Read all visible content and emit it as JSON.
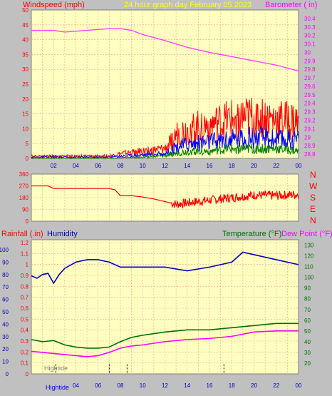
{
  "header": {
    "left_label": "Windspeed (mph)",
    "center_label": "24 hour graph day   February 05 2023",
    "right_label": "Barometer ( in)"
  },
  "lower_header": {
    "rainfall_label": "Rainfall (.in)",
    "humidity_label": "Humidity",
    "temperature_label": "Temperature (°F)",
    "dewpoint_label": "Dew Point (°F)"
  },
  "compass": [
    "N",
    "W",
    "S",
    "E",
    "N"
  ],
  "hightide_label": "Hightide",
  "colors": {
    "background": "#c0c0c0",
    "plot": "#ffffc0",
    "grid": "#f0a0a0",
    "wind": "#ff0000",
    "gust": "#0000ff",
    "avg": "#008000",
    "barometer": "#ff40ff",
    "winddir": "#ff0000",
    "humidity": "#0000c0",
    "temperature": "#007000",
    "dewpoint": "#ff00ff",
    "title": "#ffff00"
  },
  "chart_data": [
    {
      "type": "line",
      "name": "wind-barometer",
      "xlim": [
        0,
        24
      ],
      "x_ticks": [
        "02",
        "04",
        "06",
        "08",
        "10",
        "12",
        "14",
        "16",
        "18",
        "20",
        "22",
        "00"
      ],
      "y_left_ticks": [
        "0",
        "5",
        "10",
        "15",
        "20",
        "25",
        "30",
        "35",
        "40",
        "45",
        "50"
      ],
      "ylim_left": [
        0,
        50
      ],
      "y_right_ticks": [
        "28.8",
        "28.9",
        "29",
        "29.1",
        "29.2",
        "29.3",
        "29.4",
        "29.5",
        "29.6",
        "29.7",
        "29.8",
        "29.9",
        "30",
        "30.1",
        "30.2",
        "30.3",
        "30.4"
      ],
      "ylim_right": [
        28.75,
        30.5
      ],
      "barometer": {
        "x": [
          0,
          2,
          3,
          4,
          6,
          7,
          8,
          9,
          10,
          12,
          14,
          16,
          18,
          20,
          22,
          24
        ],
        "y": [
          30.26,
          30.26,
          30.24,
          30.25,
          30.27,
          30.28,
          30.28,
          30.26,
          30.21,
          30.14,
          30.06,
          30.0,
          29.95,
          29.9,
          29.85,
          29.78
        ]
      },
      "wind_envelope": {
        "x": [
          0,
          7,
          8,
          10,
          12,
          12.8,
          13,
          14,
          16,
          18,
          20,
          22,
          24
        ],
        "max": [
          1,
          1,
          2,
          3,
          4,
          8,
          10,
          12,
          14,
          16,
          17,
          16,
          15
        ],
        "gust": [
          0.5,
          0.5,
          1,
          1.5,
          2,
          4,
          5,
          6,
          7,
          8,
          9,
          8,
          8
        ],
        "avg": [
          0,
          0,
          0.3,
          0.5,
          1,
          2,
          2,
          3,
          3,
          4,
          4,
          4,
          3
        ]
      }
    },
    {
      "type": "line",
      "name": "wind-direction",
      "xlim": [
        0,
        24
      ],
      "y_ticks": [
        "0",
        "90",
        "180",
        "270",
        "360"
      ],
      "ylim": [
        0,
        360
      ],
      "x": [
        0,
        1.5,
        2,
        4,
        6,
        7,
        7.5,
        8,
        9,
        10,
        11,
        12,
        13,
        14,
        16,
        18,
        20,
        22,
        24
      ],
      "y": [
        270,
        270,
        250,
        250,
        250,
        250,
        240,
        195,
        195,
        185,
        170,
        150,
        130,
        140,
        160,
        180,
        200,
        195,
        205
      ]
    },
    {
      "type": "line",
      "name": "humidity-temperature",
      "xlim": [
        0,
        24
      ],
      "x_ticks": [
        "02",
        "04",
        "06",
        "08",
        "10",
        "12",
        "14",
        "16",
        "18",
        "20",
        "22",
        "00"
      ],
      "rain_ticks": [
        "0",
        "0.1",
        "0.2",
        "0.3",
        "0.4",
        "0.5",
        "0.6",
        "0.7",
        "0.8",
        "0.9",
        "1",
        "1.1",
        "1.2"
      ],
      "humidity_ticks": [
        "0",
        "10",
        "20",
        "30",
        "40",
        "50",
        "60",
        "70",
        "80",
        "90",
        "100"
      ],
      "temp_ticks": [
        "20",
        "30",
        "40",
        "50",
        "60",
        "70",
        "80",
        "90",
        "100",
        "110",
        "120",
        "130"
      ],
      "ylim_humidity": [
        0,
        100
      ],
      "ylim_temp": [
        10,
        135
      ],
      "humidity": {
        "x": [
          0,
          0.5,
          1,
          1.5,
          2,
          2.5,
          3,
          4,
          5,
          6,
          7,
          8,
          9,
          10,
          12,
          14,
          16,
          18,
          19,
          20,
          22,
          24
        ],
        "y": [
          79,
          77,
          80,
          81,
          73,
          80,
          85,
          90,
          92,
          92,
          90,
          86,
          86,
          86,
          86,
          83,
          86,
          90,
          98,
          96,
          92,
          88
        ]
      },
      "temperature": {
        "x": [
          0,
          1,
          2,
          3,
          4,
          5,
          6,
          7,
          8,
          9,
          10,
          12,
          14,
          16,
          18,
          20,
          22,
          24
        ],
        "y": [
          42,
          40,
          41,
          37,
          35,
          34,
          34,
          35,
          40,
          44,
          46,
          49,
          51,
          51,
          53,
          55,
          57,
          57
        ]
      },
      "dewpoint": {
        "x": [
          0,
          1,
          2,
          3,
          4,
          5,
          6,
          7,
          8,
          9,
          10,
          12,
          14,
          16,
          18,
          20,
          22,
          24
        ],
        "y": [
          31,
          30,
          29,
          28,
          27,
          26,
          27,
          30,
          34,
          36,
          37,
          40,
          42,
          43,
          45,
          49,
          50,
          50
        ]
      }
    }
  ]
}
